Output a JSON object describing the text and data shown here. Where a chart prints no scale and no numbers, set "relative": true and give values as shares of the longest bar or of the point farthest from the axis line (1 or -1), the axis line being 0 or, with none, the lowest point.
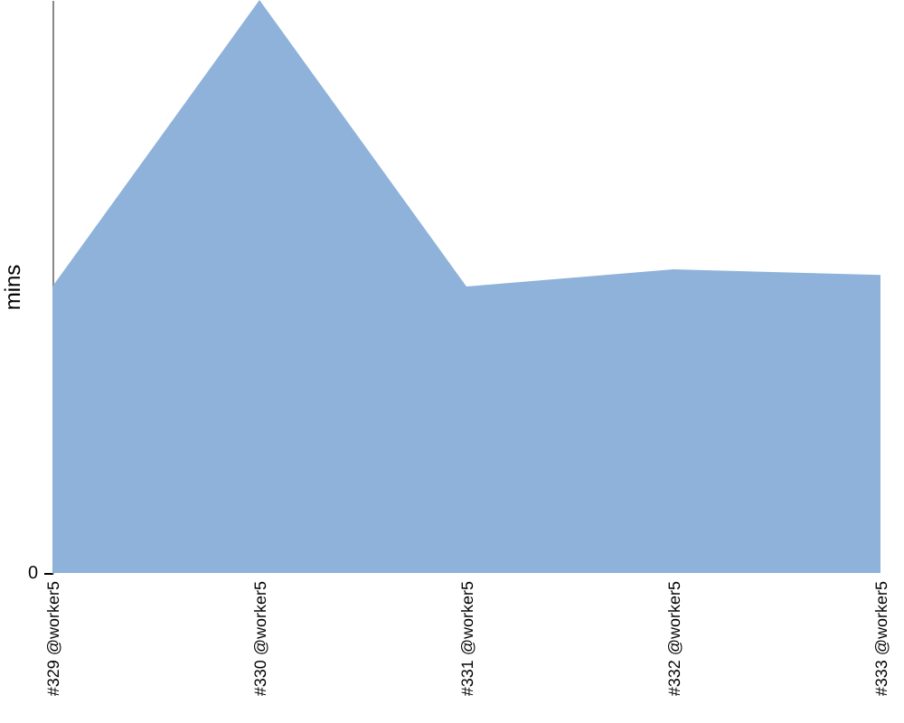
{
  "chart_data": {
    "type": "area",
    "ylabel": "mins",
    "relative": true,
    "annotations": [
      "0"
    ],
    "categories": [
      "#329 @worker5",
      "#330 @worker5",
      "#331 @worker5",
      "#332 @worker5",
      "#333 @worker5"
    ],
    "series": [
      {
        "color": "#8fb2da",
        "values": [
          0.5,
          1,
          0.5,
          0.53,
          0.52
        ]
      }
    ]
  }
}
